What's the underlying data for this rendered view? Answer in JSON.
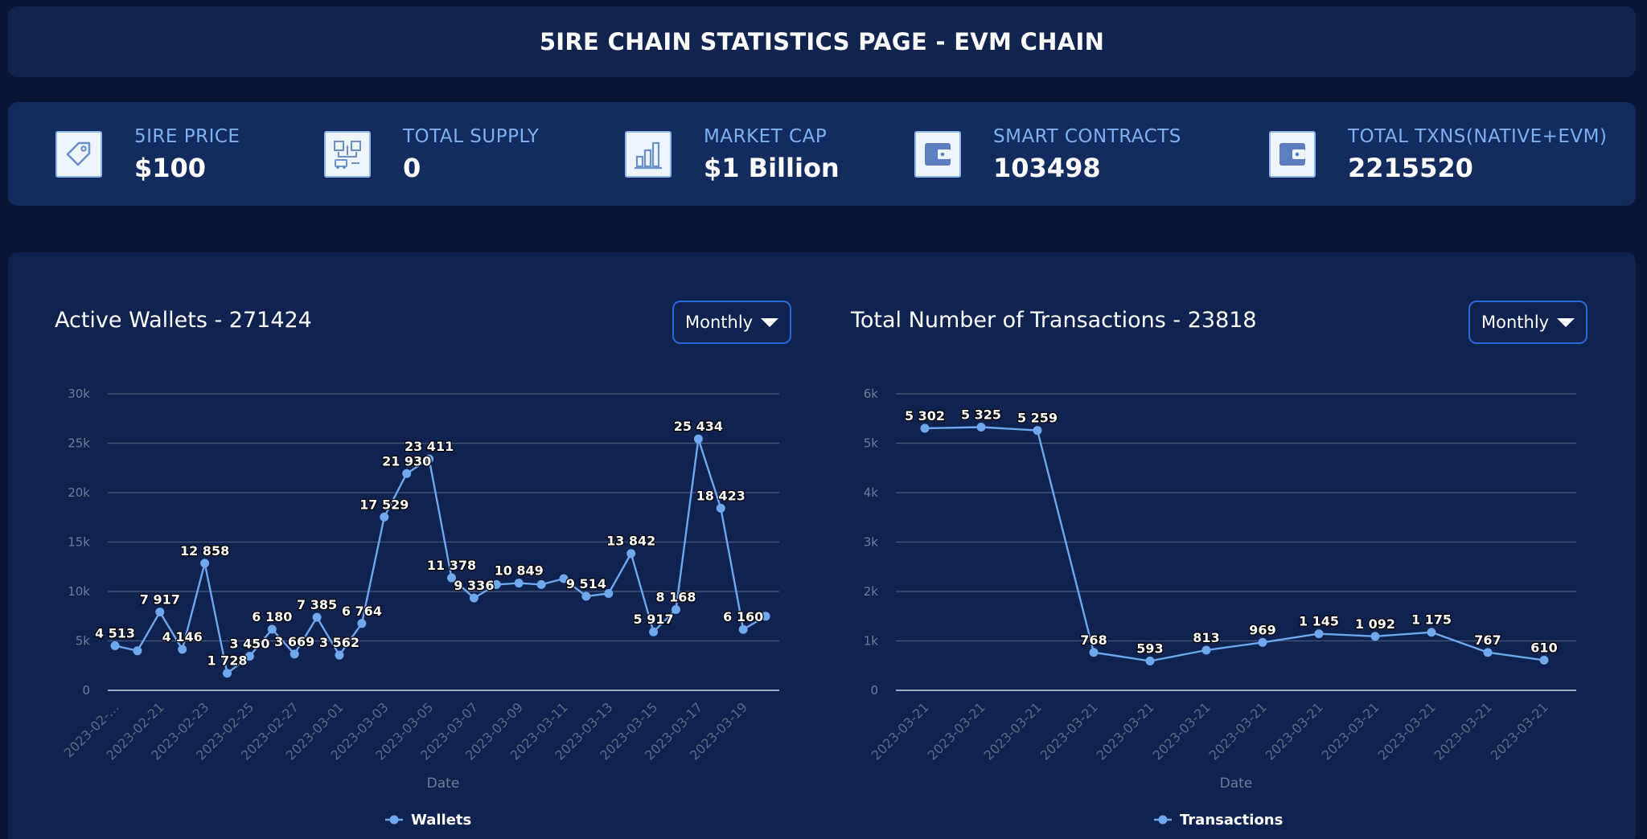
{
  "header": {
    "title": "5IRE CHAIN STATISTICS PAGE - EVM CHAIN"
  },
  "stats": [
    {
      "label": "5IRE PRICE",
      "value": "$100",
      "icon": "price-tag-icon"
    },
    {
      "label": "TOTAL SUPPLY",
      "value": "0",
      "icon": "supply-chain-icon"
    },
    {
      "label": "MARKET CAP",
      "value": "$1 Billion",
      "icon": "bar-chart-icon"
    },
    {
      "label": "SMART CONTRACTS",
      "value": "103498",
      "icon": "wallet-icon"
    },
    {
      "label": "TOTAL TXNS(NATIVE+EVM)",
      "value": "2215520",
      "icon": "wallet-icon"
    }
  ],
  "colors": {
    "background": "#0a1633",
    "card": "#0f2250",
    "stats_card": "#142b5f",
    "accent": "#7fb0f1",
    "line": "#6fa8ec",
    "dropdown_border": "#2b69d8"
  },
  "charts": {
    "wallets": {
      "title": "Active Wallets - 271424",
      "period": "Monthly"
    },
    "transactions": {
      "title": "Total Number of Transactions - 23818",
      "period": "Monthly"
    }
  },
  "chart_data": [
    {
      "type": "line",
      "title": "Active Wallets - 271424",
      "xlabel": "Date",
      "ylabel": "",
      "ylim": [
        0,
        30000
      ],
      "yticks": [
        "0",
        "5k",
        "10k",
        "15k",
        "20k",
        "25k",
        "30k"
      ],
      "grid": true,
      "legend_position": "bottom",
      "tick_labels": [
        "2023-02-…",
        "2023-02-21",
        "2023-02-23",
        "2023-02-25",
        "2023-02-27",
        "2023-03-01",
        "2023-03-03",
        "2023-03-05",
        "2023-03-07",
        "2023-03-09",
        "2023-03-11",
        "2023-03-13",
        "2023-03-15",
        "2023-03-17",
        "2023-03-19"
      ],
      "series": [
        {
          "name": "Wallets",
          "values": [
            4513,
            4000,
            7917,
            4146,
            12858,
            1728,
            3450,
            6180,
            3669,
            7385,
            3562,
            6764,
            17529,
            21930,
            23411,
            11378,
            9336,
            10700,
            10849,
            10700,
            11300,
            9514,
            9800,
            13842,
            5917,
            8168,
            25434,
            18423,
            6160,
            7500
          ],
          "labels": [
            "4 513",
            "",
            "7 917",
            "4 146",
            "12 858",
            "1 728",
            "3 450",
            "6 180",
            "3 669",
            "7 385",
            "3 562",
            "6 764",
            "17 529",
            "21 930",
            "23 411",
            "11 378",
            "9 336",
            "",
            "10 849",
            "",
            "",
            "9 514",
            "",
            "13 842",
            "5 917",
            "8 168",
            "25 434",
            "18 423",
            "6 160",
            ""
          ]
        }
      ]
    },
    {
      "type": "line",
      "title": "Total Number of Transactions - 23818",
      "xlabel": "Date",
      "ylabel": "",
      "ylim": [
        0,
        6000
      ],
      "yticks": [
        "0",
        "1k",
        "2k",
        "3k",
        "4k",
        "5k",
        "6k"
      ],
      "grid": true,
      "legend_position": "bottom",
      "tick_labels": [
        "2023-03-21",
        "2023-03-21",
        "2023-03-21",
        "2023-03-21",
        "2023-03-21",
        "2023-03-21",
        "2023-03-21",
        "2023-03-21",
        "2023-03-21",
        "2023-03-21",
        "2023-03-21",
        "2023-03-21"
      ],
      "series": [
        {
          "name": "Transactions",
          "values": [
            5302,
            5325,
            5259,
            768,
            593,
            813,
            969,
            1145,
            1092,
            1175,
            767,
            610
          ],
          "labels": [
            "5 302",
            "5 325",
            "5 259",
            "768",
            "593",
            "813",
            "969",
            "1 145",
            "1 092",
            "1 175",
            "767",
            "610"
          ]
        }
      ]
    }
  ]
}
